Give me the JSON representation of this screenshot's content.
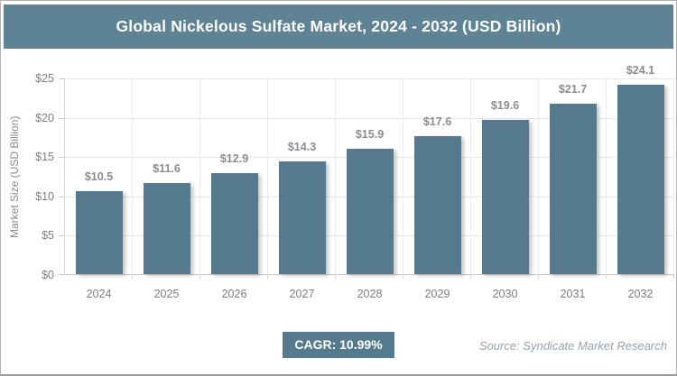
{
  "header": {
    "title": "Global Nickelous Sulfate Market, 2024 - 2032 (USD Billion)"
  },
  "chart_data": {
    "type": "bar",
    "title": "Global Nickelous Sulfate Market, 2024 - 2032 (USD Billion)",
    "categories": [
      "2024",
      "2025",
      "2026",
      "2027",
      "2028",
      "2029",
      "2030",
      "2031",
      "2032"
    ],
    "values": [
      10.5,
      11.6,
      12.9,
      14.3,
      15.9,
      17.6,
      19.6,
      21.7,
      24.1
    ],
    "value_labels": [
      "$10.5",
      "$11.6",
      "$12.9",
      "$14.3",
      "$15.9",
      "$17.6",
      "$19.6",
      "$21.7",
      "$24.1"
    ],
    "xlabel": "",
    "ylabel": "Market Size (USD Billion)",
    "ylim": [
      0,
      25
    ],
    "yticks": [
      0,
      5,
      10,
      15,
      20,
      25
    ],
    "ytick_labels": [
      "$0",
      "$5",
      "$10",
      "$15",
      "$20",
      "$25"
    ],
    "grid": true,
    "legend": "none"
  },
  "footer": {
    "cagr_label": "CAGR: 10.99%",
    "source": "Source: Syndicate Market Research"
  },
  "colors": {
    "header_bg": "#5d8394",
    "bar": "#567a8d",
    "badge_bg": "#567a8d",
    "grid_line": "#e6e6e6",
    "label_gray": "#8c8c8c"
  }
}
